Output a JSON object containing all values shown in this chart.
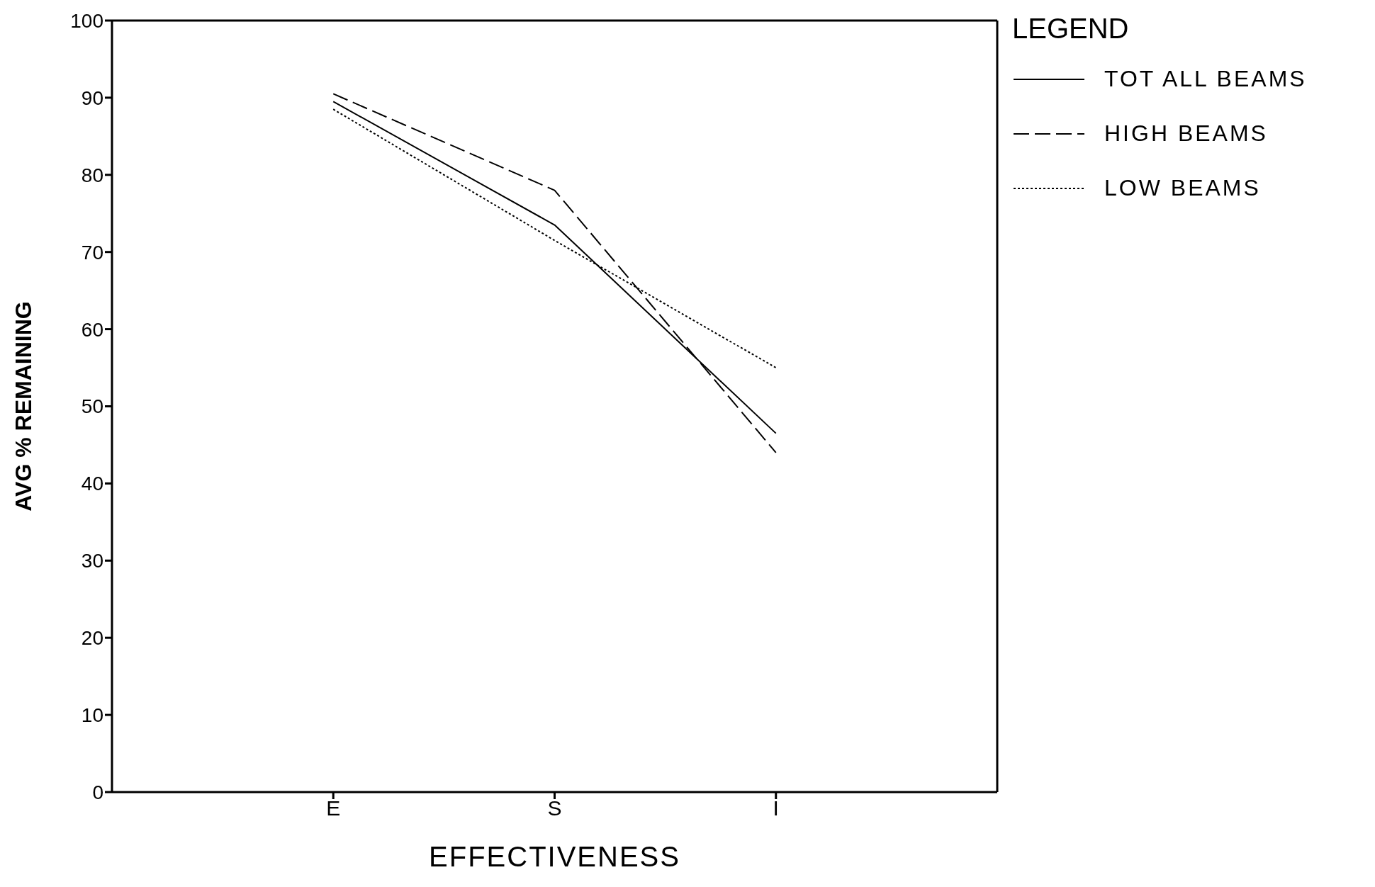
{
  "chart_data": {
    "type": "line",
    "xlabel": "EFFECTIVENESS",
    "ylabel": "AVG % REMAINING",
    "legend_title": "LEGEND",
    "categories": [
      "E",
      "S",
      "I"
    ],
    "series": [
      {
        "name": "TOT ALL BEAMS",
        "color": "#000000",
        "line_style": "solid",
        "values": [
          89.5,
          73.5,
          46.5
        ]
      },
      {
        "name": "HIGH BEAMS",
        "color": "#000000",
        "line_style": "dashed",
        "values": [
          90.5,
          78,
          44
        ]
      },
      {
        "name": "LOW BEAMS",
        "color": "#000000",
        "line_style": "dotted",
        "values": [
          88.5,
          71.5,
          55
        ]
      }
    ],
    "ylim": [
      0,
      100
    ],
    "yticks": [
      0,
      10,
      20,
      30,
      40,
      50,
      60,
      70,
      80,
      90,
      100
    ],
    "grid": false,
    "legend": "top right",
    "marker": "none"
  }
}
